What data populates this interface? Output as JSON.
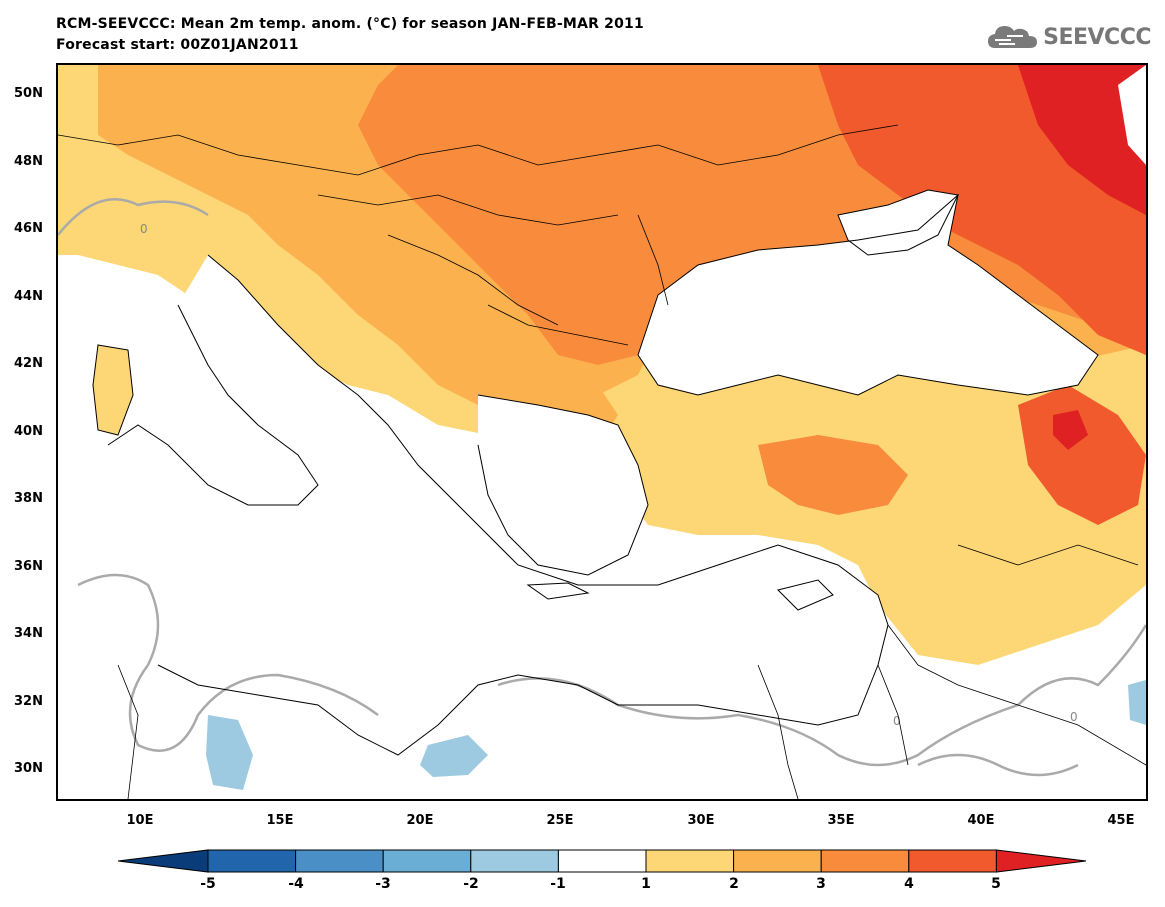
{
  "header": {
    "title_line1": "RCM-SEEVCCC: Mean 2m temp. anom. (°C) for season JAN-FEB-MAR 2011",
    "title_line2": "Forecast start: 00Z01JAN2011",
    "logo_text": "SEEVCCC"
  },
  "map": {
    "lat_labels": [
      "50N",
      "48N",
      "46N",
      "44N",
      "42N",
      "40N",
      "38N",
      "36N",
      "34N",
      "32N",
      "30N"
    ],
    "lon_labels": [
      "10E",
      "15E",
      "20E",
      "25E",
      "30E",
      "35E",
      "40E",
      "45E"
    ],
    "contour_label": "0",
    "colors": {
      "land_outline": "#000000",
      "zero_contour": "#aaaaaa",
      "class_1_2": "#fdd775",
      "class_2_3": "#fbb24e",
      "class_3_4": "#f88c3c",
      "class_4_5": "#f15a2c",
      "class_gt5": "#e02123",
      "class_m1_m2": "#9ecae1"
    }
  },
  "colorbar": {
    "labels": [
      "-5",
      "-4",
      "-3",
      "-2",
      "-1",
      "1",
      "2",
      "3",
      "4",
      "5"
    ],
    "colors": [
      "#0b3c7a",
      "#2166ac",
      "#4a8fc6",
      "#6aaed6",
      "#9ecae1",
      "#ffffff",
      "#fdd775",
      "#fbb24e",
      "#f88c3c",
      "#f15a2c",
      "#e02123"
    ]
  }
}
